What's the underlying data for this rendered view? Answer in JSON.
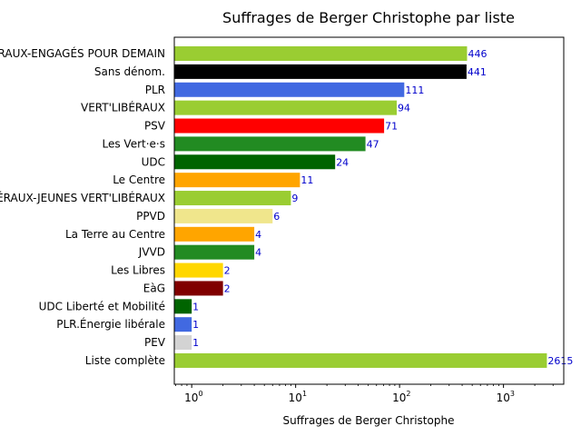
{
  "chart_data": {
    "type": "bar",
    "orientation": "horizontal",
    "title": "Suffrages de Berger Christophe par liste",
    "xlabel": "Suffrages de Berger Christophe",
    "ylabel": "",
    "xscale": "log",
    "xlim": [
      0.68,
      3800
    ],
    "x_ticks": [
      1,
      10,
      100,
      1000
    ],
    "x_tick_labels": [
      {
        "base": "10",
        "exp": "0"
      },
      {
        "base": "10",
        "exp": "1"
      },
      {
        "base": "10",
        "exp": "2"
      },
      {
        "base": "10",
        "exp": "3"
      }
    ],
    "grid": false,
    "categories": [
      "JEUNES-VERT'LIBÉRAUX-ENGAGÉS POUR DEMAIN",
      "Sans dénom.",
      "PLR",
      "VERT'LIBÉRAUX",
      "PSV",
      "Les Vert·e·s",
      "UDC",
      "Le Centre",
      "JEUNES VERT'LIBÉRAUX-JEUNES VERT'LIBÉRAUX",
      "PPVD",
      "La Terre au Centre",
      "JVVD",
      "Les Libres",
      "EàG",
      "UDC Liberté et Mobilité",
      "PLR.Énergie libérale",
      "PEV",
      "Liste complète"
    ],
    "values": [
      446,
      441,
      111,
      94,
      71,
      47,
      24,
      11,
      9,
      6,
      4,
      4,
      2,
      2,
      1,
      1,
      1,
      2615
    ],
    "value_labels": [
      "446",
      "441",
      "111",
      "94",
      "71",
      "47",
      "24",
      "11",
      "9",
      "6",
      "4",
      "4",
      "2",
      "2",
      "1",
      "1",
      "1",
      "2615"
    ],
    "colors": [
      "#9acd32",
      "#000000",
      "#4169e1",
      "#9acd32",
      "#ff0000",
      "#228b22",
      "#006400",
      "#ffa500",
      "#9acd32",
      "#f0e68c",
      "#ffa500",
      "#228b22",
      "#ffd700",
      "#800000",
      "#006400",
      "#4169e1",
      "#d3d3d3",
      "#9acd32"
    ],
    "value_label_color": "#0000cc"
  }
}
